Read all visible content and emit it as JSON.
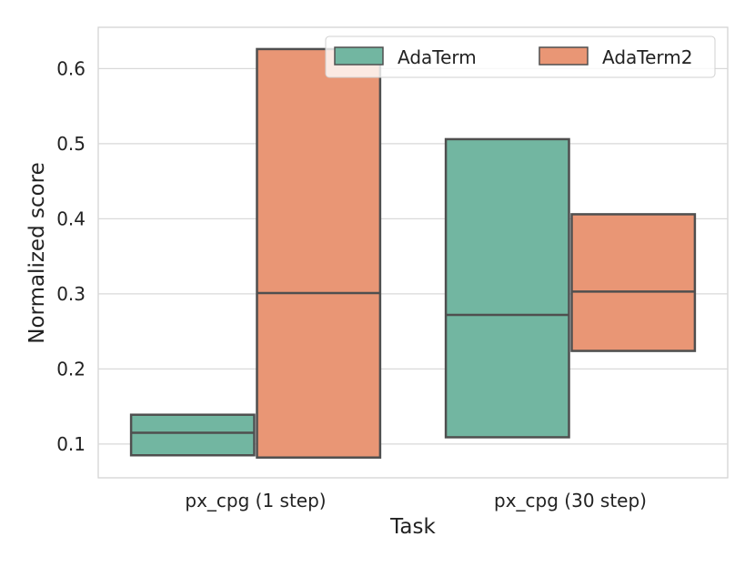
{
  "chart_data": {
    "type": "box",
    "xlabel": "Task",
    "ylabel": "Normalized score",
    "ylim": [
      0.055,
      0.655
    ],
    "yticks": [
      0.1,
      0.2,
      0.3,
      0.4,
      0.5,
      0.6
    ],
    "grid": true,
    "legend_placement": "top-right",
    "categories": [
      "px_cpg (1 step)",
      "px_cpg (30 step)"
    ],
    "series": [
      {
        "name": "AdaTerm",
        "color": "#72b6a1",
        "boxes": [
          {
            "q1": 0.085,
            "median": 0.115,
            "q3": 0.139
          },
          {
            "q1": 0.109,
            "median": 0.272,
            "q3": 0.506
          }
        ]
      },
      {
        "name": "AdaTerm2",
        "color": "#e99675",
        "boxes": [
          {
            "q1": 0.082,
            "median": 0.301,
            "q3": 0.626
          },
          {
            "q1": 0.224,
            "median": 0.303,
            "q3": 0.406
          }
        ]
      }
    ]
  }
}
